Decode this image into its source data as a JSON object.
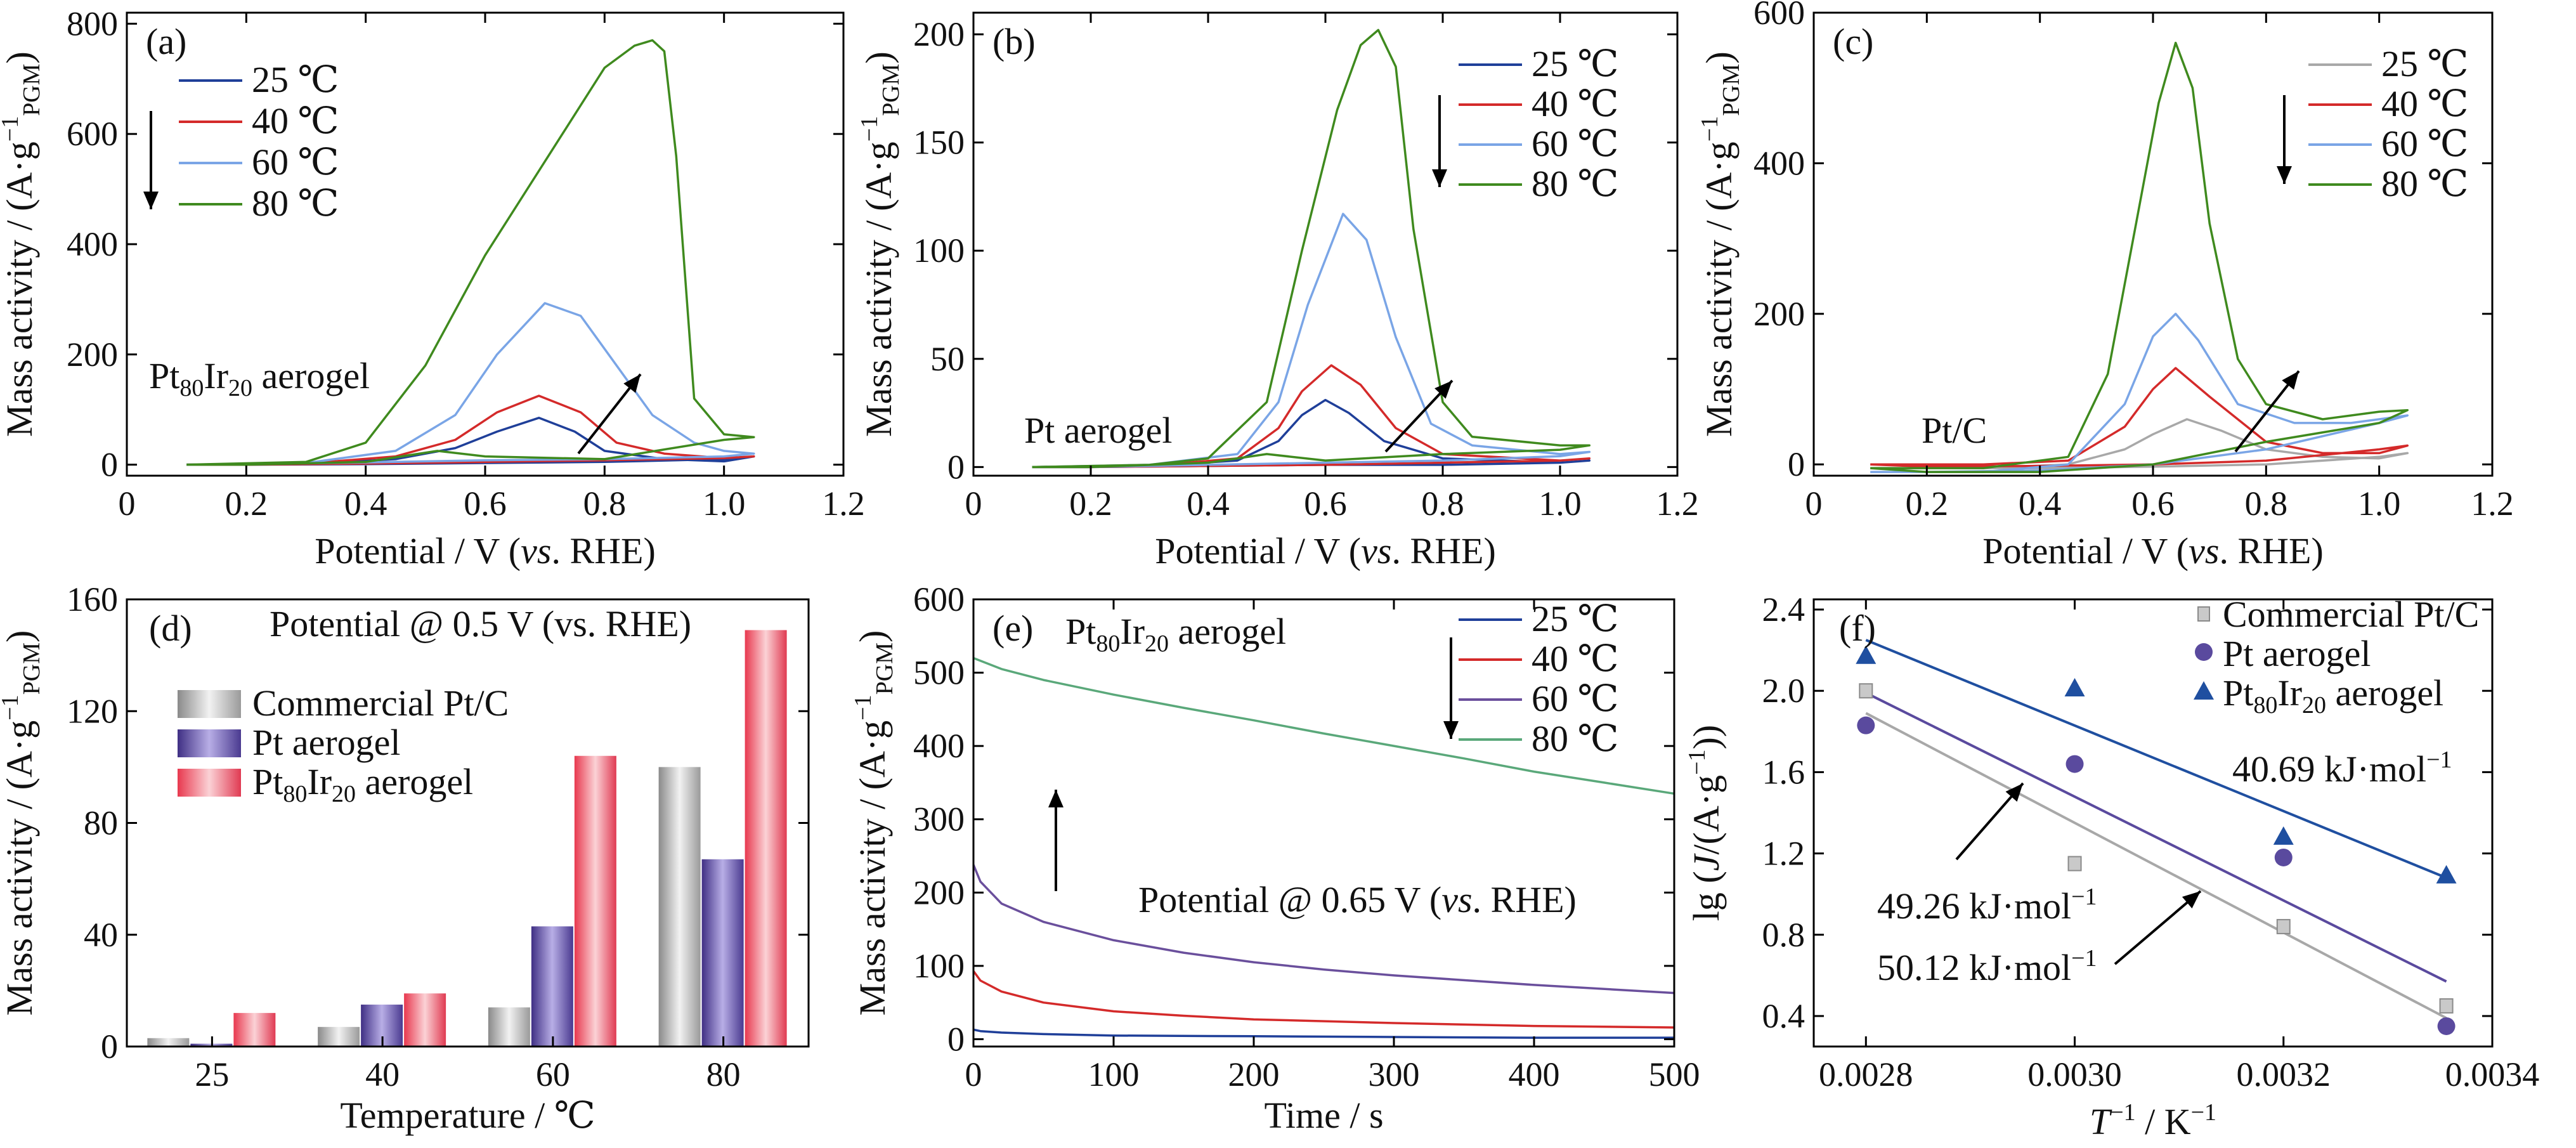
{
  "colors": {
    "c25": "#1f3f99",
    "c40": "#d42a2a",
    "c60": "#7aa5e6",
    "c80": "#3f8a1e",
    "c60e": "#6a4f9c",
    "c80e": "#5aa87a",
    "commercial": "#b9b9b9",
    "pt": "#5a4a9e",
    "ptir": "#e04d5e",
    "tri": "#1f4fa0",
    "gray_line": "#a8a8a8"
  },
  "chart_data": [
    {
      "panel": "a",
      "type": "line",
      "panel_label": "(a)",
      "xlabel": "Potential / V (vs. RHE)",
      "ylabel": "Mass activity / (A·g⁻¹PGM)",
      "xlim": [
        0,
        1.2
      ],
      "ylim": [
        -20,
        820
      ],
      "xticks": [
        "0",
        "0.2",
        "0.4",
        "0.6",
        "0.8",
        "1.0",
        "1.2"
      ],
      "yticks": [
        "0",
        "200",
        "400",
        "600",
        "800"
      ],
      "annotation": "Pt80Ir20 aerogel",
      "legend": [
        "25 ℃",
        "40 ℃",
        "60 ℃",
        "80 ℃"
      ],
      "series": [
        {
          "name": "25 ℃",
          "x": [
            0.1,
            0.3,
            0.45,
            0.55,
            0.62,
            0.69,
            0.75,
            0.8,
            0.9,
            1.0,
            1.05,
            1.0,
            0.8,
            0.6,
            0.4,
            0.2,
            0.1
          ],
          "y": [
            0,
            1,
            10,
            30,
            60,
            85,
            60,
            25,
            10,
            6,
            15,
            10,
            5,
            3,
            1,
            0,
            0
          ]
        },
        {
          "name": "40 ℃",
          "x": [
            0.1,
            0.3,
            0.45,
            0.55,
            0.62,
            0.69,
            0.76,
            0.82,
            0.9,
            1.0,
            1.05,
            1.0,
            0.8,
            0.6,
            0.4,
            0.2,
            0.1
          ],
          "y": [
            0,
            2,
            15,
            45,
            95,
            125,
            95,
            40,
            20,
            12,
            15,
            12,
            8,
            5,
            2,
            0,
            0
          ]
        },
        {
          "name": "60 ℃",
          "x": [
            0.1,
            0.3,
            0.45,
            0.55,
            0.62,
            0.7,
            0.76,
            0.82,
            0.88,
            0.95,
            1.0,
            1.05,
            1.0,
            0.8,
            0.6,
            0.4,
            0.2,
            0.1
          ],
          "y": [
            0,
            3,
            25,
            90,
            200,
            293,
            270,
            180,
            90,
            40,
            25,
            20,
            15,
            10,
            8,
            4,
            1,
            0
          ]
        },
        {
          "name": "80 ℃",
          "x": [
            0.1,
            0.3,
            0.4,
            0.5,
            0.6,
            0.7,
            0.8,
            0.85,
            0.88,
            0.9,
            0.92,
            0.95,
            1.0,
            1.05,
            1.0,
            0.8,
            0.6,
            0.52,
            0.4,
            0.2,
            0.1
          ],
          "y": [
            0,
            5,
            40,
            180,
            380,
            550,
            720,
            760,
            770,
            750,
            560,
            120,
            55,
            50,
            45,
            10,
            15,
            25,
            5,
            0,
            0
          ]
        }
      ]
    },
    {
      "panel": "b",
      "type": "line",
      "panel_label": "(b)",
      "xlabel": "Potential / V (vs. RHE)",
      "ylabel": "Mass activity / (A·g⁻¹PGM)",
      "xlim": [
        0,
        1.2
      ],
      "ylim": [
        -4,
        210
      ],
      "xticks": [
        "0",
        "0.2",
        "0.4",
        "0.6",
        "0.8",
        "1.0",
        "1.2"
      ],
      "yticks": [
        "0",
        "50",
        "100",
        "150",
        "200"
      ],
      "annotation": "Pt aerogel",
      "legend": [
        "25 ℃",
        "40 ℃",
        "60 ℃",
        "80 ℃"
      ],
      "series": [
        {
          "name": "25 ℃",
          "x": [
            0.1,
            0.3,
            0.45,
            0.52,
            0.56,
            0.6,
            0.64,
            0.7,
            0.8,
            1.0,
            1.05,
            1.0,
            0.8,
            0.6,
            0.4,
            0.2,
            0.1
          ],
          "y": [
            0,
            0.5,
            3,
            12,
            24,
            31,
            25,
            12,
            4,
            2,
            3,
            2,
            1,
            1,
            0.5,
            0,
            0
          ]
        },
        {
          "name": "40 ℃",
          "x": [
            0.1,
            0.3,
            0.45,
            0.52,
            0.56,
            0.61,
            0.66,
            0.72,
            0.8,
            1.0,
            1.05,
            1.0,
            0.8,
            0.6,
            0.4,
            0.2,
            0.1
          ],
          "y": [
            0,
            0.5,
            4,
            18,
            35,
            47,
            38,
            18,
            6,
            3,
            4,
            3,
            2,
            1,
            0.5,
            0,
            0
          ]
        },
        {
          "name": "60 ℃",
          "x": [
            0.1,
            0.3,
            0.45,
            0.52,
            0.57,
            0.63,
            0.67,
            0.72,
            0.78,
            0.85,
            1.0,
            1.05,
            1.0,
            0.8,
            0.6,
            0.4,
            0.2,
            0.1
          ],
          "y": [
            0,
            1,
            6,
            30,
            75,
            117,
            105,
            60,
            20,
            10,
            6,
            7,
            5,
            3,
            2,
            1,
            0,
            0
          ]
        },
        {
          "name": "80 ℃",
          "x": [
            0.1,
            0.3,
            0.4,
            0.5,
            0.56,
            0.62,
            0.66,
            0.69,
            0.72,
            0.75,
            0.8,
            0.85,
            1.0,
            1.05,
            1.0,
            0.8,
            0.6,
            0.5,
            0.4,
            0.2,
            0.1
          ],
          "y": [
            0,
            1,
            4,
            30,
            100,
            165,
            195,
            202,
            185,
            110,
            30,
            14,
            10,
            10,
            8,
            6,
            3,
            6,
            2,
            0,
            0
          ]
        }
      ]
    },
    {
      "panel": "c",
      "type": "line",
      "panel_label": "(c)",
      "xlabel": "Potential / V (vs. RHE)",
      "ylabel": "Mass activity / (A·g⁻¹PGM)",
      "xlim": [
        0,
        1.2
      ],
      "ylim": [
        -15,
        600
      ],
      "xticks": [
        "0",
        "0.2",
        "0.4",
        "0.6",
        "0.8",
        "1.0",
        "1.2"
      ],
      "yticks": [
        "0",
        "200",
        "400",
        "600"
      ],
      "annotation": "Pt/C",
      "legend": [
        "25 ℃",
        "40 ℃",
        "60 ℃",
        "80 ℃"
      ],
      "series": [
        {
          "name": "25 ℃",
          "x": [
            0.1,
            0.3,
            0.45,
            0.55,
            0.6,
            0.66,
            0.72,
            0.8,
            0.9,
            1.0,
            1.05,
            1.0,
            0.8,
            0.6,
            0.4,
            0.2,
            0.1
          ],
          "y": [
            -5,
            -5,
            0,
            20,
            40,
            60,
            45,
            20,
            10,
            8,
            15,
            10,
            0,
            -3,
            -5,
            -5,
            -5
          ]
        },
        {
          "name": "40 ℃",
          "x": [
            0.1,
            0.3,
            0.45,
            0.55,
            0.6,
            0.64,
            0.7,
            0.8,
            0.9,
            1.0,
            1.05,
            1.0,
            0.8,
            0.6,
            0.4,
            0.2,
            0.1
          ],
          "y": [
            0,
            0,
            5,
            50,
            100,
            128,
            90,
            30,
            15,
            15,
            25,
            20,
            5,
            0,
            -2,
            -3,
            0
          ]
        },
        {
          "name": "60 ℃",
          "x": [
            0.1,
            0.3,
            0.45,
            0.55,
            0.6,
            0.64,
            0.68,
            0.75,
            0.85,
            0.95,
            1.0,
            1.05,
            1.0,
            0.8,
            0.6,
            0.4,
            0.2,
            0.1
          ],
          "y": [
            -10,
            -10,
            0,
            80,
            170,
            200,
            165,
            80,
            55,
            55,
            60,
            65,
            55,
            20,
            0,
            -8,
            -10,
            -10
          ]
        },
        {
          "name": "80 ℃",
          "x": [
            0.1,
            0.3,
            0.45,
            0.52,
            0.57,
            0.61,
            0.64,
            0.67,
            0.7,
            0.75,
            0.8,
            0.9,
            1.0,
            1.05,
            1.0,
            0.8,
            0.6,
            0.4,
            0.2,
            0.1
          ],
          "y": [
            -5,
            -5,
            10,
            120,
            320,
            480,
            560,
            500,
            320,
            140,
            80,
            60,
            70,
            72,
            55,
            30,
            0,
            -10,
            -10,
            -5
          ]
        }
      ]
    },
    {
      "panel": "d",
      "type": "bar",
      "panel_label": "(d)",
      "xlabel": "Temperature / ℃",
      "ylabel": "Mass activity / (A·g⁻¹PGM)",
      "annotation": "Potential @ 0.5 V (vs. RHE)",
      "categories": [
        "25",
        "40",
        "60",
        "80"
      ],
      "ylim": [
        0,
        160
      ],
      "yticks": [
        "0",
        "40",
        "80",
        "120",
        "160"
      ],
      "series": [
        {
          "name": "Commercial Pt/C",
          "values": [
            3,
            7,
            14,
            100
          ]
        },
        {
          "name": "Pt aerogel",
          "values": [
            1,
            15,
            43,
            67
          ]
        },
        {
          "name": "Pt80Ir20 aerogel",
          "values": [
            12,
            19,
            104,
            149
          ]
        }
      ]
    },
    {
      "panel": "e",
      "type": "line",
      "panel_label": "(e)",
      "xlabel": "Time / s",
      "ylabel": "Mass activity / (A·g⁻¹PGM)",
      "xlim": [
        0,
        500
      ],
      "ylim": [
        -10,
        600
      ],
      "xticks": [
        "0",
        "100",
        "200",
        "300",
        "400",
        "500"
      ],
      "yticks": [
        "0",
        "100",
        "200",
        "300",
        "400",
        "500",
        "600"
      ],
      "annotation_top": "Pt80Ir20 aerogel",
      "annotation_mid": "Potential @ 0.65 V (vs. RHE)",
      "legend": [
        "25 ℃",
        "40 ℃",
        "60 ℃",
        "80 ℃"
      ],
      "series": [
        {
          "name": "25 ℃",
          "x": [
            0,
            5,
            20,
            50,
            100,
            200,
            300,
            400,
            500
          ],
          "y": [
            13,
            11,
            9,
            7,
            5,
            4,
            3,
            2,
            2
          ]
        },
        {
          "name": "40 ℃",
          "x": [
            0,
            5,
            20,
            50,
            100,
            150,
            200,
            300,
            400,
            500
          ],
          "y": [
            93,
            80,
            65,
            50,
            38,
            32,
            27,
            22,
            18,
            16
          ]
        },
        {
          "name": "60 ℃",
          "x": [
            0,
            5,
            20,
            50,
            100,
            150,
            200,
            250,
            300,
            400,
            500
          ],
          "y": [
            238,
            215,
            185,
            160,
            135,
            118,
            105,
            95,
            87,
            74,
            63
          ]
        },
        {
          "name": "80 ℃",
          "x": [
            0,
            20,
            50,
            100,
            150,
            200,
            250,
            300,
            350,
            400,
            450,
            500
          ],
          "y": [
            520,
            505,
            490,
            470,
            452,
            435,
            417,
            400,
            383,
            365,
            350,
            335
          ]
        }
      ]
    },
    {
      "panel": "f",
      "type": "scatter",
      "panel_label": "(f)",
      "xlabel": "T⁻¹ / K⁻¹",
      "ylabel": "lg (J/(A·g⁻¹))",
      "xlim": [
        0.00275,
        0.0034
      ],
      "ylim": [
        0.25,
        2.45
      ],
      "xticks": [
        "0.0028",
        "0.0030",
        "0.0032",
        "0.0034"
      ],
      "yticks": [
        "0.4",
        "0.8",
        "1.2",
        "1.6",
        "2.0",
        "2.4"
      ],
      "series": [
        {
          "name": "Commercial Pt/C",
          "x": [
            0.0028,
            0.003,
            0.0032,
            0.003356
          ],
          "y": [
            2.0,
            1.15,
            0.84,
            0.45
          ]
        },
        {
          "name": "Pt aerogel",
          "x": [
            0.0028,
            0.003,
            0.0032,
            0.003356
          ],
          "y": [
            1.83,
            1.64,
            1.18,
            0.35
          ]
        },
        {
          "name": "Pt80Ir20 aerogel",
          "x": [
            0.0028,
            0.003,
            0.0032,
            0.003356
          ],
          "y": [
            2.17,
            2.01,
            1.28,
            1.09
          ]
        }
      ],
      "fit_lines": [
        {
          "name": "Commercial Pt/C",
          "x": [
            0.0028,
            0.003356
          ],
          "y": [
            1.89,
            0.39
          ]
        },
        {
          "name": "Pt aerogel",
          "x": [
            0.0028,
            0.003356
          ],
          "y": [
            1.99,
            0.57
          ]
        },
        {
          "name": "Pt80Ir20 aerogel",
          "x": [
            0.0028,
            0.003356
          ],
          "y": [
            2.25,
            1.08
          ]
        }
      ],
      "annotations": [
        "40.69 kJ·mol⁻¹",
        "49.26 kJ·mol⁻¹",
        "50.12 kJ·mol⁻¹"
      ]
    }
  ]
}
